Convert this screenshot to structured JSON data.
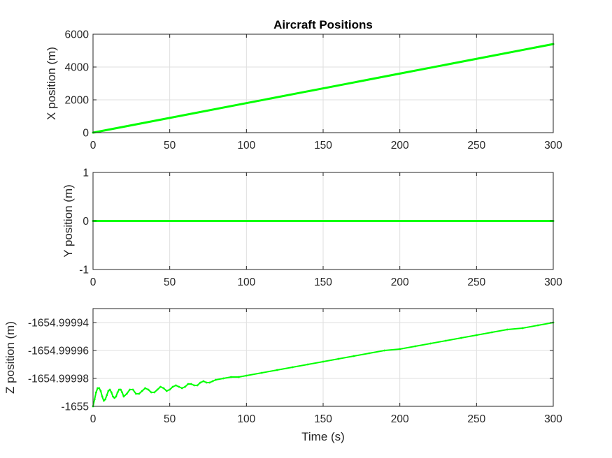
{
  "chart_data": {
    "type": "line",
    "title": "Aircraft Positions",
    "series_color": "#00ff00",
    "grid": true,
    "subplots": [
      {
        "name": "x-position",
        "ylabel": "X position (m)",
        "xlabel": "",
        "xlim": [
          0,
          300
        ],
        "ylim": [
          0,
          6000
        ],
        "xticks": [
          0,
          50,
          100,
          150,
          200,
          250,
          300
        ],
        "yticks": [
          0,
          2000,
          4000,
          6000
        ],
        "ytick_labels": [
          "0",
          "2000",
          "4000",
          "6000"
        ],
        "series": [
          {
            "x": [
              0,
              50,
              100,
              139,
              141,
              150,
              200,
              250,
              300
            ],
            "y": [
              0,
              900,
              1800,
              2502,
              2538,
              2700,
              3600,
              4500,
              5400
            ]
          }
        ]
      },
      {
        "name": "y-position",
        "ylabel": "Y position (m)",
        "xlabel": "",
        "xlim": [
          0,
          300
        ],
        "ylim": [
          -1,
          1
        ],
        "xticks": [
          0,
          50,
          100,
          150,
          200,
          250,
          300
        ],
        "yticks": [
          -1,
          0,
          1
        ],
        "ytick_labels": [
          "-1",
          "0",
          "1"
        ],
        "series": [
          {
            "x": [
              0,
              300
            ],
            "y": [
              0,
              0
            ]
          }
        ]
      },
      {
        "name": "z-position",
        "ylabel": "Z position (m)",
        "xlabel": "Time (s)",
        "xlim": [
          0,
          300
        ],
        "ylim": [
          -1655,
          -1654.99993
        ],
        "xticks": [
          0,
          50,
          100,
          150,
          200,
          250,
          300
        ],
        "yticks": [
          -1655,
          -1654.99998,
          -1654.99996,
          -1654.99994
        ],
        "ytick_labels": [
          "-1655",
          "-1654.99998",
          "-1654.99996",
          "-1654.99994"
        ],
        "series": [
          {
            "x": [
              0,
              1,
              2,
              3,
              4,
              5,
              6,
              7,
              8,
              9,
              10,
              11,
              12,
              13,
              14,
              15,
              16,
              17,
              18,
              19,
              20,
              22,
              24,
              26,
              28,
              30,
              32,
              34,
              36,
              38,
              40,
              42,
              44,
              46,
              48,
              50,
              52,
              54,
              56,
              58,
              60,
              62,
              64,
              66,
              68,
              70,
              72,
              74,
              76,
              78,
              80,
              85,
              90,
              95,
              100,
              110,
              120,
              130,
              140,
              150,
              160,
              170,
              180,
              190,
              200,
              210,
              220,
              230,
              240,
              250,
              260,
              270,
              280,
              290,
              300
            ],
            "y": [
              -1655,
              -1654.999995,
              -1654.99999,
              -1654.999987,
              -1654.999987,
              -1654.999989,
              -1654.999993,
              -1654.999996,
              -1654.999995,
              -1654.999992,
              -1654.999989,
              -1654.999988,
              -1654.99999,
              -1654.999993,
              -1654.999994,
              -1654.999993,
              -1654.99999,
              -1654.999988,
              -1654.999988,
              -1654.99999,
              -1654.999993,
              -1654.999991,
              -1654.999988,
              -1654.999988,
              -1654.999991,
              -1654.999991,
              -1654.999989,
              -1654.999987,
              -1654.999988,
              -1654.99999,
              -1654.99999,
              -1654.999988,
              -1654.999986,
              -1654.999987,
              -1654.999989,
              -1654.999988,
              -1654.999986,
              -1654.999985,
              -1654.999986,
              -1654.999987,
              -1654.999986,
              -1654.999984,
              -1654.999984,
              -1654.999985,
              -1654.999985,
              -1654.999983,
              -1654.999982,
              -1654.999983,
              -1654.999983,
              -1654.999982,
              -1654.999981,
              -1654.99998,
              -1654.999979,
              -1654.999979,
              -1654.999978,
              -1654.999976,
              -1654.999974,
              -1654.999972,
              -1654.99997,
              -1654.999968,
              -1654.999966,
              -1654.999964,
              -1654.999962,
              -1654.99996,
              -1654.999959,
              -1654.999957,
              -1654.999955,
              -1654.999953,
              -1654.999951,
              -1654.999949,
              -1654.999947,
              -1654.999945,
              -1654.999944,
              -1654.999942,
              -1654.99994
            ]
          }
        ]
      }
    ]
  }
}
